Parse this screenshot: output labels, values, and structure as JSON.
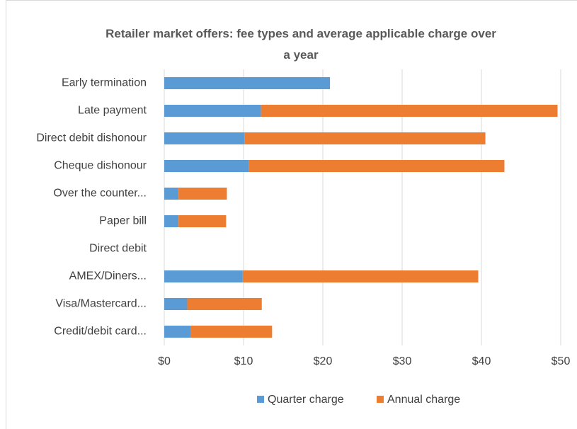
{
  "chart_data": {
    "type": "stacked-barh",
    "title": "Retailer market offers: fee types and average applicable charge over a year",
    "categories": [
      "Early termination",
      "Late payment",
      "Direct debit dishonour",
      "Cheque dishonour",
      "Over the counter...",
      "Paper bill",
      "Direct debit",
      "AMEX/Diners...",
      "Visa/Mastercard...",
      "Credit/debit card..."
    ],
    "series": [
      {
        "name": "Quarter charge",
        "color": "#5b9bd5",
        "values": [
          20.9,
          12.2,
          10.1,
          10.7,
          1.8,
          1.8,
          0,
          9.9,
          2.9,
          3.3
        ]
      },
      {
        "name": "Annual charge",
        "color": "#ed7d31",
        "values": [
          0,
          37.4,
          30.4,
          32.2,
          6.1,
          6.0,
          0,
          29.7,
          9.4,
          10.3
        ]
      }
    ],
    "xlim": [
      0,
      50
    ],
    "xticks": [
      {
        "value": 0,
        "label": "$0"
      },
      {
        "value": 10,
        "label": "$10"
      },
      {
        "value": 20,
        "label": "$20"
      },
      {
        "value": 30,
        "label": "$30"
      },
      {
        "value": 40,
        "label": "$40"
      },
      {
        "value": 50,
        "label": "$50"
      }
    ],
    "grid": true,
    "legend": "bottom"
  }
}
